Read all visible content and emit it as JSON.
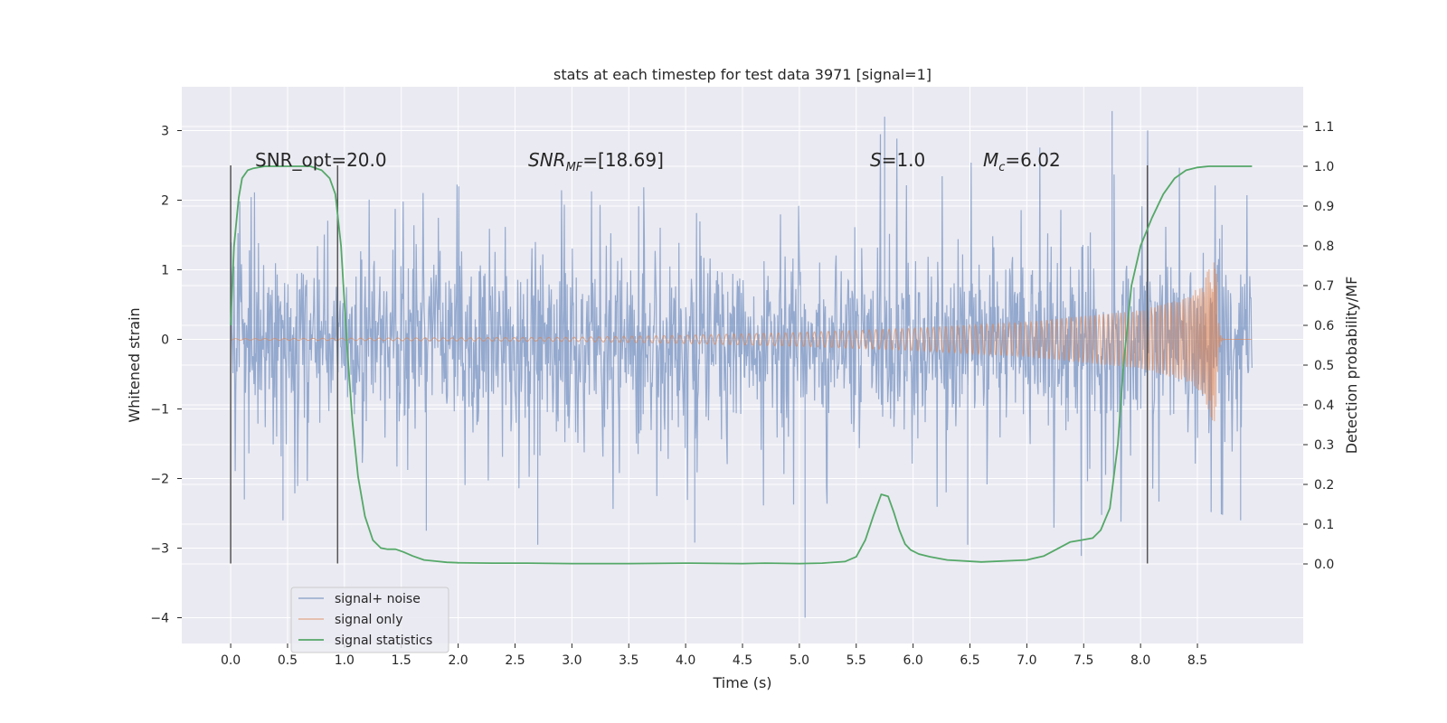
{
  "chart_data": {
    "type": "line",
    "title": "stats at each timestep for test data 3971 [signal=1]",
    "xlabel": "Time (s)",
    "ylabel": "Whitened strain",
    "ylabel_right": "Detection probability/MF",
    "xlim": [
      -0.43,
      9.43
    ],
    "ylim": [
      -4.37,
      3.63
    ],
    "ylim_right": [
      -0.2,
      1.2
    ],
    "xticks": [
      "0.0",
      "0.5",
      "1.0",
      "1.5",
      "2.0",
      "2.5",
      "3.0",
      "3.5",
      "4.0",
      "4.5",
      "5.0",
      "5.5",
      "6.0",
      "6.5",
      "7.0",
      "7.5",
      "8.0",
      "8.5"
    ],
    "xtick_values": [
      0,
      0.5,
      1,
      1.5,
      2,
      2.5,
      3,
      3.5,
      4,
      4.5,
      5,
      5.5,
      6,
      6.5,
      7,
      7.5,
      8,
      8.5
    ],
    "yticks": [
      "3",
      "2",
      "1",
      "0",
      "−1",
      "−2",
      "−3",
      "−4"
    ],
    "ytick_values": [
      3,
      2,
      1,
      0,
      -1,
      -2,
      -3,
      -4
    ],
    "yticks_right": [
      "1.1",
      "1.0",
      "0.9",
      "0.8",
      "0.7",
      "0.6",
      "0.5",
      "0.4",
      "0.3",
      "0.2",
      "0.1",
      "0.0"
    ],
    "ytick_right_values": [
      1.1,
      1.0,
      0.9,
      0.8,
      0.7,
      0.6,
      0.5,
      0.4,
      0.3,
      0.2,
      0.1,
      0.0
    ],
    "annotations": {
      "snr_opt": "SNR_opt=20.0",
      "snr_mf_main": "SNR",
      "snr_mf_sub": "MF",
      "snr_mf_value": "=[18.69]",
      "s_main": "S",
      "s_value": "=1.0",
      "mc_main": "M",
      "mc_sub": "c",
      "mc_value": "=6.02"
    },
    "vlines": [
      0.0,
      0.94,
      8.06
    ],
    "vline_range": [
      -3.22,
      2.5
    ],
    "series": [
      {
        "name": "signal+ noise",
        "color": "#4c72b0",
        "axis": "left",
        "x_range": [
          0.0,
          8.98
        ],
        "bulk_amplitude": 1.3,
        "envelope": [
          [
            0.0,
            2.1
          ],
          [
            1.0,
            2.3
          ],
          [
            2.0,
            2.5
          ],
          [
            3.0,
            2.5
          ],
          [
            4.0,
            2.4
          ],
          [
            5.0,
            2.4
          ],
          [
            5.75,
            3.2
          ],
          [
            6.0,
            2.6
          ],
          [
            7.0,
            2.8
          ],
          [
            7.75,
            3.3
          ],
          [
            8.5,
            2.8
          ],
          [
            8.98,
            2.3
          ]
        ],
        "extremes": [
          [
            0.12,
            -2.3
          ],
          [
            0.46,
            -2.6
          ],
          [
            1.72,
            -2.75
          ],
          [
            2.7,
            -2.95
          ],
          [
            4.08,
            -2.92
          ],
          [
            5.05,
            -4.0
          ],
          [
            5.75,
            3.2
          ],
          [
            6.48,
            -2.95
          ],
          [
            7.75,
            3.28
          ],
          [
            8.88,
            -2.6
          ]
        ]
      },
      {
        "name": "signal only",
        "color": "#dd8452",
        "axis": "left",
        "x_range": [
          0.0,
          8.98
        ],
        "merger_time": 8.66,
        "envelope": [
          [
            0.0,
            0.01
          ],
          [
            3.0,
            0.03
          ],
          [
            4.0,
            0.06
          ],
          [
            5.0,
            0.1
          ],
          [
            6.0,
            0.16
          ],
          [
            7.0,
            0.25
          ],
          [
            8.0,
            0.42
          ],
          [
            8.4,
            0.6
          ],
          [
            8.55,
            0.8
          ],
          [
            8.66,
            1.3
          ]
        ]
      },
      {
        "name": "signal statistics",
        "color": "#55a868",
        "axis": "right",
        "x": [
          0.0,
          0.03,
          0.07,
          0.1,
          0.15,
          0.2,
          0.3,
          0.4,
          0.5,
          0.6,
          0.7,
          0.8,
          0.87,
          0.92,
          0.97,
          1.02,
          1.07,
          1.12,
          1.18,
          1.25,
          1.32,
          1.38,
          1.45,
          1.52,
          1.6,
          1.7,
          1.8,
          1.9,
          2.0,
          2.3,
          2.6,
          3.0,
          3.5,
          4.0,
          4.5,
          4.7,
          5.0,
          5.2,
          5.4,
          5.5,
          5.58,
          5.65,
          5.72,
          5.78,
          5.83,
          5.88,
          5.93,
          5.98,
          6.05,
          6.15,
          6.3,
          6.6,
          7.0,
          7.15,
          7.25,
          7.38,
          7.48,
          7.58,
          7.65,
          7.73,
          7.8,
          7.85,
          7.92,
          8.0,
          8.1,
          8.2,
          8.3,
          8.4,
          8.5,
          8.6,
          8.8,
          8.98
        ],
        "values": [
          0.6,
          0.8,
          0.92,
          0.97,
          0.99,
          0.995,
          1.0,
          1.0,
          1.0,
          1.0,
          1.0,
          0.99,
          0.97,
          0.93,
          0.8,
          0.56,
          0.36,
          0.22,
          0.12,
          0.06,
          0.04,
          0.037,
          0.037,
          0.03,
          0.02,
          0.01,
          0.007,
          0.004,
          0.003,
          0.002,
          0.002,
          0.001,
          0.001,
          0.002,
          0.001,
          0.002,
          0.001,
          0.002,
          0.006,
          0.018,
          0.06,
          0.12,
          0.175,
          0.17,
          0.13,
          0.085,
          0.05,
          0.035,
          0.025,
          0.018,
          0.01,
          0.005,
          0.01,
          0.02,
          0.035,
          0.055,
          0.06,
          0.065,
          0.085,
          0.14,
          0.3,
          0.5,
          0.7,
          0.8,
          0.87,
          0.93,
          0.97,
          0.99,
          0.997,
          1.0,
          1.0,
          1.0
        ]
      }
    ],
    "legend": [
      "signal+ noise",
      "signal only",
      "signal statistics"
    ],
    "legend_position": "lower-left",
    "grid": true
  }
}
